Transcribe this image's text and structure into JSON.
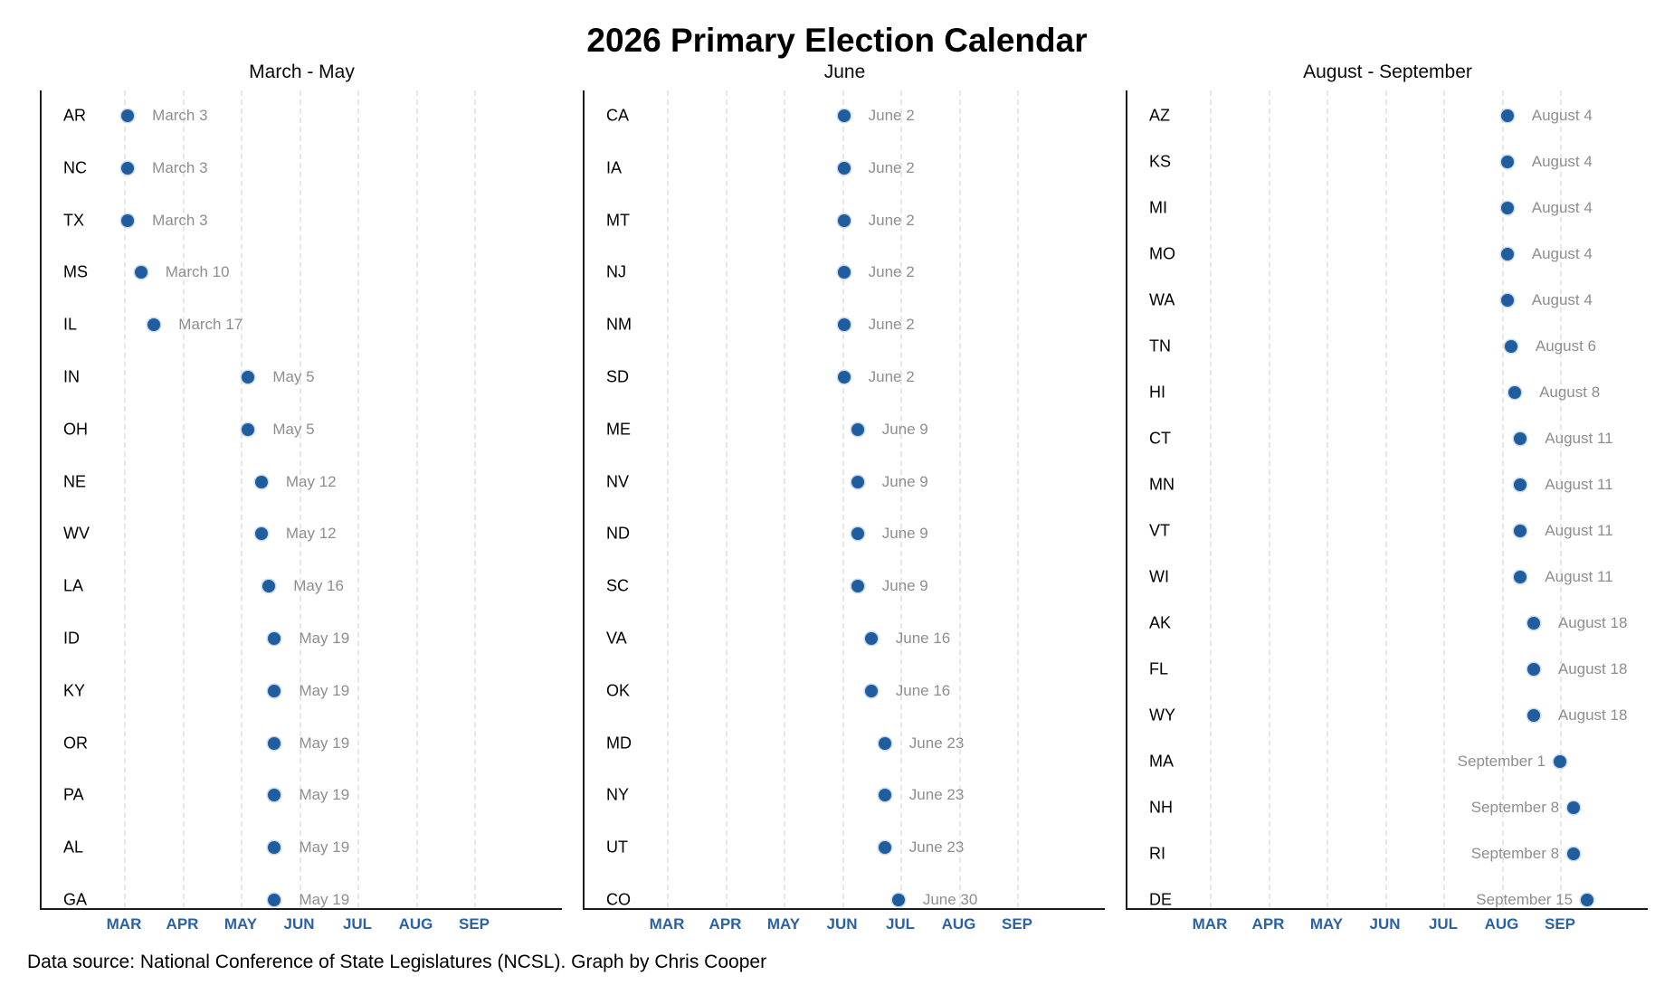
{
  "title": "2026 Primary Election Calendar",
  "caption": "Data source: National Conference of State Legislatures (NCSL). Graph by Chris Cooper",
  "colors": {
    "dot": "#1f5d9e",
    "month_label": "#2b62a5",
    "date_label": "#8e8e8e",
    "state_label": "#000000",
    "gridline": "#e7e7e7",
    "axis": "#1c1c1c"
  },
  "chart_data": {
    "type": "scatter",
    "x_axis": {
      "tick_labels": [
        "MAR",
        "APR",
        "MAY",
        "JUN",
        "JUL",
        "AUG",
        "SEP"
      ],
      "range": [
        "March 1",
        "early October"
      ],
      "grid": "dashed vertical at each month start"
    },
    "panels": [
      {
        "title": "March - May",
        "points": [
          {
            "state": "AR",
            "date_label": "March 3",
            "month": 3,
            "day": 3
          },
          {
            "state": "NC",
            "date_label": "March 3",
            "month": 3,
            "day": 3
          },
          {
            "state": "TX",
            "date_label": "March 3",
            "month": 3,
            "day": 3
          },
          {
            "state": "MS",
            "date_label": "March 10",
            "month": 3,
            "day": 10
          },
          {
            "state": "IL",
            "date_label": "March 17",
            "month": 3,
            "day": 17
          },
          {
            "state": "IN",
            "date_label": "May 5",
            "month": 5,
            "day": 5
          },
          {
            "state": "OH",
            "date_label": "May 5",
            "month": 5,
            "day": 5
          },
          {
            "state": "NE",
            "date_label": "May 12",
            "month": 5,
            "day": 12
          },
          {
            "state": "WV",
            "date_label": "May 12",
            "month": 5,
            "day": 12
          },
          {
            "state": "LA",
            "date_label": "May 16",
            "month": 5,
            "day": 16
          },
          {
            "state": "ID",
            "date_label": "May 19",
            "month": 5,
            "day": 19
          },
          {
            "state": "KY",
            "date_label": "May 19",
            "month": 5,
            "day": 19
          },
          {
            "state": "OR",
            "date_label": "May 19",
            "month": 5,
            "day": 19
          },
          {
            "state": "PA",
            "date_label": "May 19",
            "month": 5,
            "day": 19
          },
          {
            "state": "AL",
            "date_label": "May 19",
            "month": 5,
            "day": 19
          },
          {
            "state": "GA",
            "date_label": "May 19",
            "month": 5,
            "day": 19
          }
        ]
      },
      {
        "title": "June",
        "points": [
          {
            "state": "CA",
            "date_label": "June 2",
            "month": 6,
            "day": 2
          },
          {
            "state": "IA",
            "date_label": "June 2",
            "month": 6,
            "day": 2
          },
          {
            "state": "MT",
            "date_label": "June 2",
            "month": 6,
            "day": 2
          },
          {
            "state": "NJ",
            "date_label": "June 2",
            "month": 6,
            "day": 2
          },
          {
            "state": "NM",
            "date_label": "June 2",
            "month": 6,
            "day": 2
          },
          {
            "state": "SD",
            "date_label": "June 2",
            "month": 6,
            "day": 2
          },
          {
            "state": "ME",
            "date_label": "June 9",
            "month": 6,
            "day": 9
          },
          {
            "state": "NV",
            "date_label": "June 9",
            "month": 6,
            "day": 9
          },
          {
            "state": "ND",
            "date_label": "June 9",
            "month": 6,
            "day": 9
          },
          {
            "state": "SC",
            "date_label": "June 9",
            "month": 6,
            "day": 9
          },
          {
            "state": "VA",
            "date_label": "June 16",
            "month": 6,
            "day": 16
          },
          {
            "state": "OK",
            "date_label": "June 16",
            "month": 6,
            "day": 16
          },
          {
            "state": "MD",
            "date_label": "June 23",
            "month": 6,
            "day": 23
          },
          {
            "state": "NY",
            "date_label": "June 23",
            "month": 6,
            "day": 23
          },
          {
            "state": "UT",
            "date_label": "June 23",
            "month": 6,
            "day": 23
          },
          {
            "state": "CO",
            "date_label": "June 30",
            "month": 6,
            "day": 30
          }
        ]
      },
      {
        "title": "August - September",
        "points": [
          {
            "state": "AZ",
            "date_label": "August 4",
            "month": 8,
            "day": 4
          },
          {
            "state": "KS",
            "date_label": "August 4",
            "month": 8,
            "day": 4
          },
          {
            "state": "MI",
            "date_label": "August 4",
            "month": 8,
            "day": 4
          },
          {
            "state": "MO",
            "date_label": "August 4",
            "month": 8,
            "day": 4
          },
          {
            "state": "WA",
            "date_label": "August 4",
            "month": 8,
            "day": 4
          },
          {
            "state": "TN",
            "date_label": "August 6",
            "month": 8,
            "day": 6
          },
          {
            "state": "HI",
            "date_label": "August 8",
            "month": 8,
            "day": 8
          },
          {
            "state": "CT",
            "date_label": "August 11",
            "month": 8,
            "day": 11
          },
          {
            "state": "MN",
            "date_label": "August 11",
            "month": 8,
            "day": 11
          },
          {
            "state": "VT",
            "date_label": "August 11",
            "month": 8,
            "day": 11
          },
          {
            "state": "WI",
            "date_label": "August 11",
            "month": 8,
            "day": 11
          },
          {
            "state": "AK",
            "date_label": "August 18",
            "month": 8,
            "day": 18
          },
          {
            "state": "FL",
            "date_label": "August 18",
            "month": 8,
            "day": 18
          },
          {
            "state": "WY",
            "date_label": "August 18",
            "month": 8,
            "day": 18
          },
          {
            "state": "MA",
            "date_label": "September 1",
            "month": 9,
            "day": 1
          },
          {
            "state": "NH",
            "date_label": "September 8",
            "month": 9,
            "day": 8
          },
          {
            "state": "RI",
            "date_label": "September 8",
            "month": 9,
            "day": 8
          },
          {
            "state": "DE",
            "date_label": "September 15",
            "month": 9,
            "day": 15
          }
        ]
      }
    ]
  }
}
